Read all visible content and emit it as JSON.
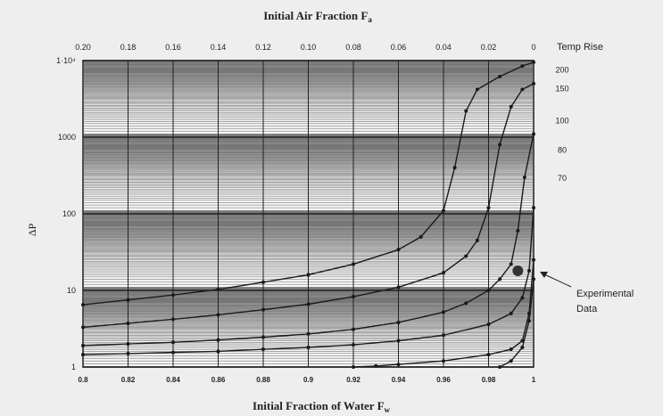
{
  "chart_data": {
    "type": "line",
    "title": "Initial Air Fraction  F",
    "title_subscript": "a",
    "xlabel": "Initial Fraction of Water  F",
    "xlabel_subscript": "w",
    "ylabel": "ΔP",
    "x_range": [
      0.8,
      1.0
    ],
    "y_scale": "log",
    "y_range": [
      1,
      10000
    ],
    "grid": true,
    "bottom_ticks": [
      "0.8",
      "0.82",
      "0.84",
      "0.86",
      "0.88",
      "0.9",
      "0.92",
      "0.94",
      "0.96",
      "0.98",
      "1"
    ],
    "top_ticks": [
      "0.20",
      "0.18",
      "0.16",
      "0.14",
      "0.12",
      "0.10",
      "0.08",
      "0.06",
      "0.04",
      "0.02",
      "0"
    ],
    "y_ticks": [
      "1",
      "10",
      "100",
      "1000",
      "1·10⁴"
    ],
    "right_axis_title": "Temp Rise",
    "right_labels": [
      {
        "text": "200",
        "y": 7600
      },
      {
        "text": "150",
        "y": 4300
      },
      {
        "text": "100",
        "y": 1650
      },
      {
        "text": "80",
        "y": 680
      },
      {
        "text": "70",
        "y": 290
      }
    ],
    "annotation": {
      "line1": "Experimental",
      "line2": "Data",
      "x": 0.993,
      "y": 18
    },
    "series": [
      {
        "name": "200",
        "points": [
          [
            0.8,
            6.5
          ],
          [
            0.82,
            7.5
          ],
          [
            0.84,
            8.7
          ],
          [
            0.86,
            10.3
          ],
          [
            0.88,
            12.8
          ],
          [
            0.9,
            16
          ],
          [
            0.92,
            22
          ],
          [
            0.94,
            34
          ],
          [
            0.95,
            50
          ],
          [
            0.96,
            110
          ],
          [
            0.965,
            400
          ],
          [
            0.97,
            2200
          ],
          [
            0.975,
            4200
          ],
          [
            0.985,
            6200
          ],
          [
            0.995,
            8500
          ],
          [
            1.0,
            9500
          ]
        ]
      },
      {
        "name": "150",
        "points": [
          [
            0.8,
            3.3
          ],
          [
            0.82,
            3.7
          ],
          [
            0.84,
            4.2
          ],
          [
            0.86,
            4.8
          ],
          [
            0.88,
            5.6
          ],
          [
            0.9,
            6.6
          ],
          [
            0.92,
            8.3
          ],
          [
            0.94,
            11
          ],
          [
            0.96,
            17
          ],
          [
            0.97,
            28
          ],
          [
            0.975,
            45
          ],
          [
            0.98,
            120
          ],
          [
            0.985,
            800
          ],
          [
            0.99,
            2500
          ],
          [
            0.995,
            4200
          ],
          [
            1.0,
            5000
          ]
        ]
      },
      {
        "name": "100",
        "points": [
          [
            0.8,
            1.9
          ],
          [
            0.82,
            2.0
          ],
          [
            0.84,
            2.1
          ],
          [
            0.86,
            2.25
          ],
          [
            0.88,
            2.45
          ],
          [
            0.9,
            2.7
          ],
          [
            0.92,
            3.1
          ],
          [
            0.94,
            3.8
          ],
          [
            0.96,
            5.2
          ],
          [
            0.97,
            6.8
          ],
          [
            0.98,
            10
          ],
          [
            0.985,
            14
          ],
          [
            0.99,
            22
          ],
          [
            0.993,
            60
          ],
          [
            0.996,
            300
          ],
          [
            1.0,
            1100
          ]
        ]
      },
      {
        "name": "80",
        "points": [
          [
            0.8,
            1.45
          ],
          [
            0.82,
            1.5
          ],
          [
            0.84,
            1.55
          ],
          [
            0.86,
            1.6
          ],
          [
            0.88,
            1.7
          ],
          [
            0.9,
            1.8
          ],
          [
            0.92,
            1.95
          ],
          [
            0.94,
            2.2
          ],
          [
            0.96,
            2.6
          ],
          [
            0.98,
            3.6
          ],
          [
            0.99,
            5
          ],
          [
            0.995,
            8
          ],
          [
            0.998,
            18
          ],
          [
            1.0,
            120
          ]
        ]
      },
      {
        "name": "70",
        "points": [
          [
            0.92,
            1.0
          ],
          [
            0.93,
            1.03
          ],
          [
            0.94,
            1.08
          ],
          [
            0.96,
            1.2
          ],
          [
            0.98,
            1.45
          ],
          [
            0.99,
            1.7
          ],
          [
            0.995,
            2.2
          ],
          [
            0.998,
            5
          ],
          [
            1.0,
            25
          ]
        ]
      },
      {
        "name": "",
        "points": [
          [
            0.985,
            1.0
          ],
          [
            0.99,
            1.2
          ],
          [
            0.995,
            1.8
          ],
          [
            0.998,
            4
          ],
          [
            1.0,
            14
          ]
        ]
      }
    ]
  }
}
